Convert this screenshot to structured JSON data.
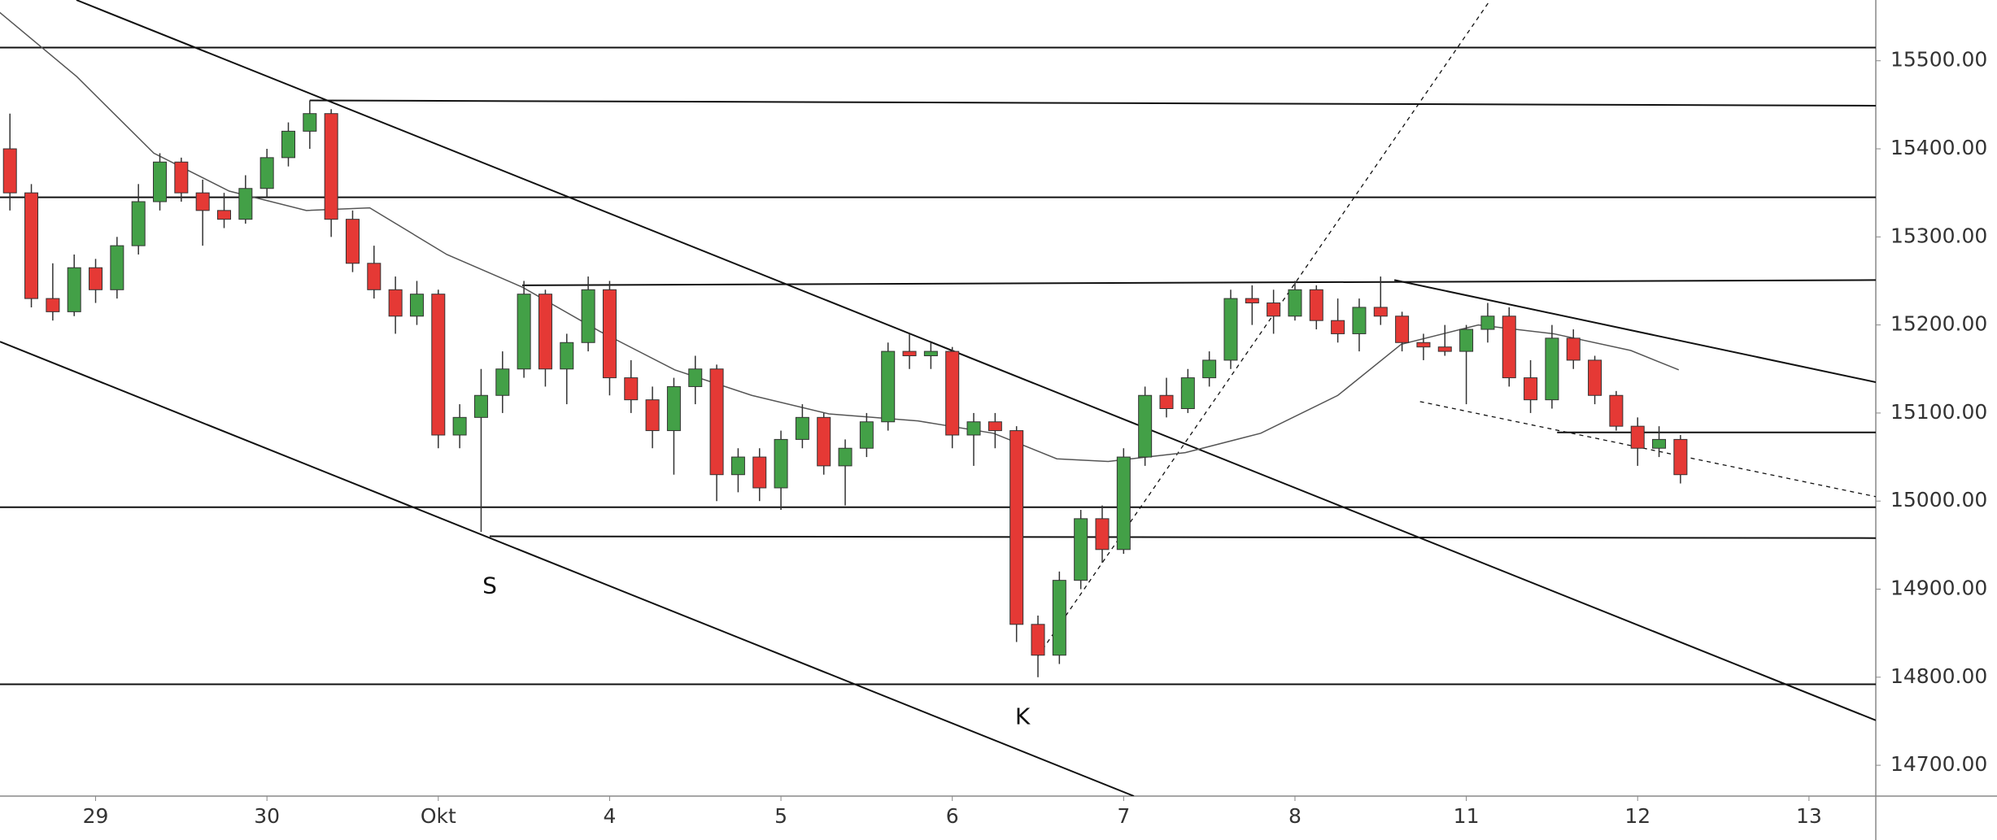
{
  "chart_data": {
    "type": "candlestick",
    "up_color": "#43a047",
    "down_color": "#e53935",
    "wick_color": "#333333",
    "x": [
      -0.5,
      -0.375,
      -0.25,
      -0.125,
      0,
      0.125,
      0.25,
      0.375,
      0.5,
      0.625,
      0.75,
      0.875,
      1,
      1.125,
      1.25,
      1.375,
      1.5,
      1.625,
      1.75,
      1.875,
      2,
      2.125,
      2.25,
      2.375,
      2.5,
      2.625,
      2.75,
      2.875,
      3,
      3.125,
      3.25,
      3.375,
      3.5,
      3.625,
      3.75,
      3.875,
      4,
      4.125,
      4.25,
      4.375,
      4.5,
      4.625,
      4.75,
      4.875,
      5,
      5.125,
      5.25,
      5.375,
      5.5,
      5.625,
      5.75,
      5.875,
      6,
      6.125,
      6.25,
      6.375,
      6.5,
      6.625,
      6.75,
      6.875,
      7,
      7.125,
      7.25,
      7.375,
      7.5,
      7.625,
      7.75,
      7.875,
      8,
      8.125,
      8.25,
      8.375,
      8.5,
      8.625,
      8.75,
      8.875,
      9,
      9.125,
      9.25
    ],
    "open": [
      15400,
      15350,
      15230,
      15215,
      15265,
      15240,
      15290,
      15340,
      15385,
      15350,
      15330,
      15320,
      15355,
      15390,
      15420,
      15440,
      15320,
      15270,
      15240,
      15210,
      15235,
      15075,
      15095,
      15120,
      15150,
      15235,
      15150,
      15180,
      15240,
      15140,
      15115,
      15080,
      15130,
      15150,
      15030,
      15050,
      15015,
      15070,
      15095,
      15040,
      15060,
      15090,
      15170,
      15165,
      15170,
      15075,
      15090,
      15080,
      14860,
      14825,
      14910,
      14980,
      14945,
      15050,
      15120,
      15105,
      15140,
      15160,
      15230,
      15225,
      15210,
      15240,
      15205,
      15190,
      15220,
      15210,
      15180,
      15175,
      15170,
      15195,
      15210,
      15140,
      15115,
      15185,
      15160,
      15120,
      15085,
      15060,
      15070
    ],
    "high": [
      15440,
      15360,
      15270,
      15280,
      15275,
      15300,
      15360,
      15395,
      15390,
      15365,
      15350,
      15370,
      15400,
      15430,
      15455,
      15445,
      15330,
      15290,
      15255,
      15250,
      15240,
      15110,
      15150,
      15170,
      15250,
      15240,
      15190,
      15255,
      15250,
      15160,
      15130,
      15140,
      15165,
      15155,
      15060,
      15060,
      15080,
      15110,
      15100,
      15070,
      15100,
      15180,
      15190,
      15180,
      15175,
      15100,
      15100,
      15085,
      14870,
      14920,
      14990,
      14995,
      15060,
      15130,
      15140,
      15150,
      15170,
      15240,
      15245,
      15240,
      15250,
      15245,
      15230,
      15230,
      15255,
      15215,
      15190,
      15200,
      15200,
      15225,
      15220,
      15160,
      15200,
      15195,
      15165,
      15125,
      15095,
      15085,
      15075
    ],
    "low": [
      15330,
      15220,
      15205,
      15210,
      15225,
      15230,
      15280,
      15330,
      15340,
      15290,
      15310,
      15315,
      15345,
      15380,
      15400,
      15300,
      15260,
      15230,
      15190,
      15200,
      15060,
      15060,
      14965,
      15100,
      15140,
      15130,
      15110,
      15170,
      15120,
      15100,
      15060,
      15030,
      15110,
      15000,
      15010,
      15000,
      14990,
      15060,
      15030,
      14995,
      15050,
      15080,
      15150,
      15150,
      15060,
      15040,
      15060,
      14840,
      14800,
      14815,
      14900,
      14930,
      14940,
      15040,
      15095,
      15100,
      15130,
      15150,
      15200,
      15190,
      15205,
      15195,
      15180,
      15170,
      15200,
      15170,
      15160,
      15165,
      15110,
      15180,
      15130,
      15100,
      15105,
      15150,
      15110,
      15080,
      15040,
      15050,
      15020
    ],
    "close": [
      15350,
      15230,
      15215,
      15265,
      15240,
      15290,
      15340,
      15385,
      15350,
      15330,
      15320,
      15355,
      15390,
      15420,
      15440,
      15320,
      15270,
      15240,
      15210,
      15235,
      15075,
      15095,
      15120,
      15150,
      15235,
      15150,
      15180,
      15240,
      15140,
      15115,
      15080,
      15130,
      15150,
      15030,
      15050,
      15015,
      15070,
      15095,
      15040,
      15060,
      15090,
      15170,
      15165,
      15170,
      15075,
      15090,
      15080,
      14860,
      14825,
      14910,
      14980,
      14945,
      15050,
      15120,
      15105,
      15140,
      15160,
      15230,
      15225,
      15210,
      15240,
      15205,
      15190,
      15220,
      15210,
      15180,
      15175,
      15170,
      15195,
      15210,
      15140,
      15115,
      15185,
      15160,
      15120,
      15085,
      15060,
      15070,
      15030
    ],
    "moving_average": {
      "color": "#555555",
      "x": [
        -0.56,
        -0.11,
        0.34,
        0.78,
        1.23,
        1.6,
        2.05,
        2.49,
        2.94,
        3.38,
        3.83,
        4.28,
        4.8,
        5.24,
        5.61,
        5.91,
        6.36,
        6.8,
        7.25,
        7.62,
        8.07,
        8.51,
        8.96,
        9.24
      ],
      "values": [
        15555,
        15482,
        15395,
        15352,
        15330,
        15333,
        15280,
        15243,
        15193,
        15149,
        15120,
        15099,
        15091,
        15077,
        15048,
        15045,
        15055,
        15077,
        15120,
        15178,
        15200,
        15190,
        15171,
        15149
      ]
    },
    "drawings": [
      {
        "x": [
          -0.558,
          10.39
        ],
        "y": [
          15515,
          15515
        ],
        "dashed": false
      },
      {
        "x": [
          1.25,
          10.39
        ],
        "y": [
          15455,
          15449
        ],
        "dashed": false
      },
      {
        "x": [
          -0.558,
          10.39
        ],
        "y": [
          15345,
          15345
        ],
        "dashed": false
      },
      {
        "x": [
          2.49,
          10.39
        ],
        "y": [
          15245,
          15251
        ],
        "dashed": false
      },
      {
        "x": [
          -0.558,
          10.39
        ],
        "y": [
          14993,
          14993
        ],
        "dashed": false
      },
      {
        "x": [
          2.3,
          10.39
        ],
        "y": [
          14960,
          14958
        ],
        "dashed": false
      },
      {
        "x": [
          -0.558,
          10.39
        ],
        "y": [
          14792,
          14792
        ],
        "dashed": false
      },
      {
        "x": [
          8.53,
          10.39
        ],
        "y": [
          15078,
          15078
        ],
        "dashed": false
      },
      {
        "x": [
          -0.112,
          10.39
        ],
        "y": [
          15569,
          14751
        ],
        "dashed": false
      },
      {
        "x": [
          -0.558,
          6.06
        ],
        "y": [
          15181,
          14665
        ],
        "dashed": false
      },
      {
        "x": [
          7.58,
          10.39
        ],
        "y": [
          15251,
          15135
        ],
        "dashed": false
      },
      {
        "x": [
          5.5,
          8.14
        ],
        "y": [
          14824,
          15569
        ],
        "dashed": true
      },
      {
        "x": [
          7.73,
          10.39
        ],
        "y": [
          15113,
          15005
        ],
        "dashed": true
      }
    ],
    "annotations": [
      {
        "text": "S",
        "x": 2.3,
        "y": 14903
      },
      {
        "text": "K",
        "x": 5.41,
        "y": 14754
      }
    ],
    "xlim": [
      -0.558,
      10.39
    ],
    "ylim": [
      14665,
      15569
    ],
    "xticks": [
      {
        "value": 0,
        "label": "29"
      },
      {
        "value": 1,
        "label": "30"
      },
      {
        "value": 2,
        "label": "Okt"
      },
      {
        "value": 3,
        "label": "4"
      },
      {
        "value": 4,
        "label": "5"
      },
      {
        "value": 5,
        "label": "6"
      },
      {
        "value": 6,
        "label": "7"
      },
      {
        "value": 7,
        "label": "8"
      },
      {
        "value": 8,
        "label": "11"
      },
      {
        "value": 9,
        "label": "12"
      },
      {
        "value": 10,
        "label": "13"
      }
    ],
    "yticks": [
      {
        "value": 14700,
        "label": "14700.00"
      },
      {
        "value": 14800,
        "label": "14800.00"
      },
      {
        "value": 14900,
        "label": "14900.00"
      },
      {
        "value": 15000,
        "label": "15000.00"
      },
      {
        "value": 15100,
        "label": "15100.00"
      },
      {
        "value": 15200,
        "label": "15200.00"
      },
      {
        "value": 15300,
        "label": "15300.00"
      },
      {
        "value": 15400,
        "label": "15400.00"
      },
      {
        "value": 15500,
        "label": "15500.00"
      }
    ]
  }
}
